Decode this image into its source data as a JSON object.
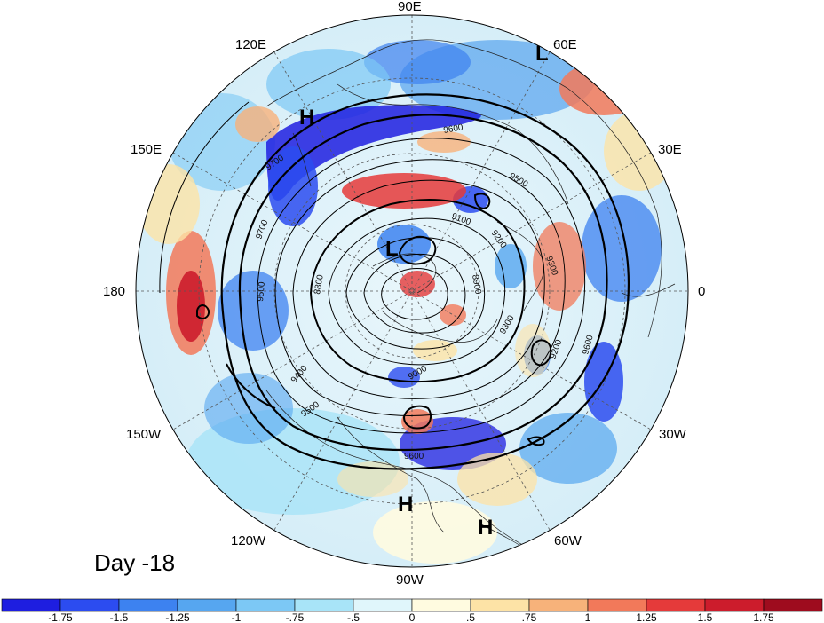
{
  "map": {
    "day_label": "Day -18",
    "longitude_labels": [
      {
        "text": "90E",
        "id": "lon-90e"
      },
      {
        "text": "60E",
        "id": "lon-60e"
      },
      {
        "text": "120E",
        "id": "lon-120e"
      },
      {
        "text": "30E",
        "id": "lon-30e"
      },
      {
        "text": "150E",
        "id": "lon-150e"
      },
      {
        "text": "0",
        "id": "lon-0"
      },
      {
        "text": "180",
        "id": "lon-180"
      },
      {
        "text": "30W",
        "id": "lon-30w"
      },
      {
        "text": "150W",
        "id": "lon-150w"
      },
      {
        "text": "60W",
        "id": "lon-60w"
      },
      {
        "text": "120W",
        "id": "lon-120w"
      },
      {
        "text": "90W",
        "id": "lon-90w"
      }
    ],
    "pressure_centers": [
      {
        "text": "L",
        "id": "low-60e"
      },
      {
        "text": "H",
        "id": "high-120e"
      },
      {
        "text": "L",
        "id": "low-pole"
      },
      {
        "text": "H",
        "id": "high-100w"
      },
      {
        "text": "H",
        "id": "high-70w"
      }
    ],
    "contour_labels": [
      "9600",
      "9700",
      "9500",
      "9100",
      "9200",
      "9300",
      "8800",
      "9400",
      "9000",
      "8900",
      "9600",
      "9500",
      "9600",
      "9700",
      "9300",
      "9200",
      "9500"
    ]
  },
  "colorbar": {
    "ticks": [
      "-1.75",
      "-1.5",
      "-1.25",
      "-1",
      "-.75",
      "-.5",
      "0",
      ".5",
      ".75",
      "1",
      "1.25",
      "1.5",
      "1.75"
    ],
    "colors": [
      "#1e1ee0",
      "#2c4cf0",
      "#3d82f0",
      "#56a6f0",
      "#7cc8f5",
      "#a8e4f8",
      "#e0f6fb",
      "#fffbe0",
      "#fde3a6",
      "#f7b27a",
      "#f2795a",
      "#e53a3a",
      "#cc1c2c",
      "#9e0c1e"
    ]
  }
}
